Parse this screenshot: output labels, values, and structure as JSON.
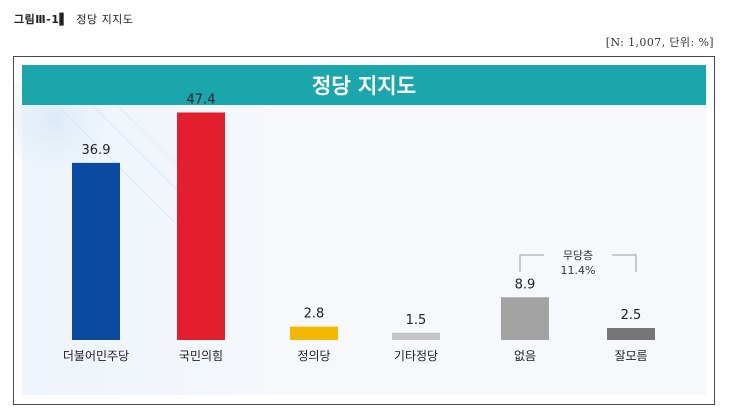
{
  "caption": {
    "label": "그림Ⅲ-1▌",
    "title": "정당 지지도"
  },
  "meta_note": "[N: 1,007, 단위: %]",
  "colors": {
    "title_band": "#1ba6ac",
    "frame_border": "#4a4a4a"
  },
  "chart_data": {
    "type": "bar",
    "title": "정당 지지도",
    "categories": [
      "더불어민주당",
      "국민의힘",
      "정의당",
      "기타정당",
      "없음",
      "잘모름"
    ],
    "values": [
      36.9,
      47.4,
      2.8,
      1.5,
      8.9,
      2.5
    ],
    "value_labels": [
      "36.9",
      "47.4",
      "2.8",
      "1.5",
      "8.9",
      "2.5"
    ],
    "bar_colors": [
      "#0b4aa2",
      "#e41f2d",
      "#f5b800",
      "#c4c4c4",
      "#a3a3a3",
      "#767676"
    ],
    "ylim": [
      0,
      50
    ],
    "grid": false,
    "legend": "none",
    "annotation": {
      "label": "무당층",
      "value": "11.4%",
      "spans": [
        "없음",
        "잘모름"
      ]
    }
  }
}
